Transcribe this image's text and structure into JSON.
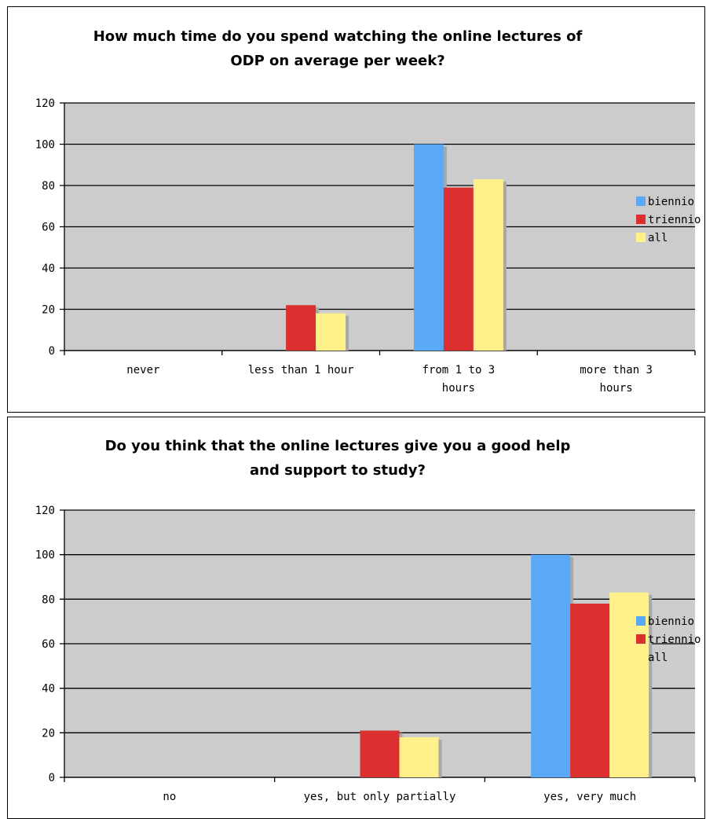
{
  "colors": {
    "plot_bg": "#cccccc",
    "grid": "#000000",
    "series": [
      "#5aa9f7",
      "#dc2f2f",
      "#fff08a"
    ],
    "bar_shadow": "#a8a8a8"
  },
  "chart_data": [
    {
      "type": "bar",
      "title_lines": [
        "How much time do you spend watching the online lectures of",
        "ODP on average per week?"
      ],
      "categories": [
        "never",
        "less than 1 hour",
        "from 1 to 3 hours",
        "more than 3 hours"
      ],
      "category_label_lines": [
        [
          "never"
        ],
        [
          "less than 1 hour"
        ],
        [
          "from 1 to 3",
          "hours"
        ],
        [
          "more than 3",
          "hours"
        ]
      ],
      "series": [
        {
          "name": "biennio",
          "values": [
            0,
            0,
            100,
            0
          ]
        },
        {
          "name": "triennio",
          "values": [
            0,
            22,
            79,
            0
          ]
        },
        {
          "name": "all",
          "values": [
            0,
            18,
            83,
            0
          ]
        }
      ],
      "ylim": [
        0,
        120
      ],
      "yticks": [
        0,
        20,
        40,
        60,
        80,
        100,
        120
      ],
      "grid": true,
      "legend": "right"
    },
    {
      "type": "bar",
      "title_lines": [
        "Do you think that the online lectures give you a good help",
        "and support to study?"
      ],
      "categories": [
        "no",
        "yes, but only partially",
        "yes, very much"
      ],
      "category_label_lines": [
        [
          "no"
        ],
        [
          "yes, but only partially"
        ],
        [
          "yes, very much"
        ]
      ],
      "series": [
        {
          "name": "biennio",
          "values": [
            0,
            0,
            100
          ]
        },
        {
          "name": "triennio",
          "values": [
            0,
            21,
            78
          ]
        },
        {
          "name": "all",
          "values": [
            0,
            18,
            83
          ]
        }
      ],
      "ylim": [
        0,
        120
      ],
      "yticks": [
        0,
        20,
        40,
        60,
        80,
        100,
        120
      ],
      "grid": true,
      "legend": "right"
    }
  ]
}
